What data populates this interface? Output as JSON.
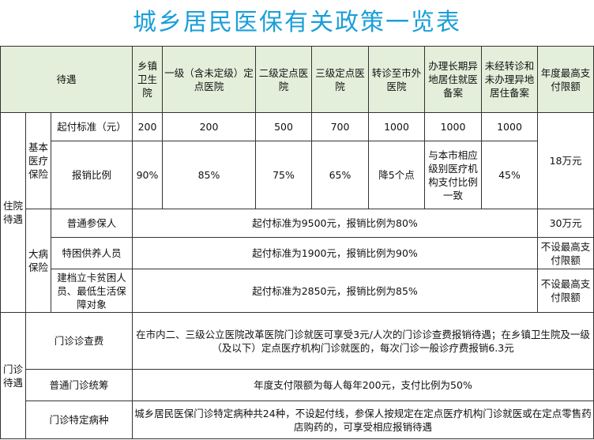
{
  "title": "城乡居民医保有关政策一览表",
  "header": {
    "benefit": "待遇",
    "township": "乡镇卫生院",
    "level1": "一级（含未定级）定点医院",
    "level2": "二级定点医院",
    "level3": "三级定点医院",
    "referral": "转诊至市外医院",
    "long_term": "办理长期异地居住就医备案",
    "no_referral": "未经转诊和未办理异地居住备案",
    "annual_cap": "年度最高支付限额"
  },
  "inpatient": {
    "label": "住院待遇",
    "basic": {
      "label": "基本医疗保险",
      "deductible": {
        "label": "起付标准（元）",
        "values": [
          "200",
          "200",
          "500",
          "700",
          "1000",
          "1000",
          "1000"
        ]
      },
      "ratio": {
        "label": "报销比例",
        "values": [
          "90%",
          "85%",
          "75%",
          "65%",
          "降5个点",
          "与本市相应级别医疗机构支付比例一致",
          "45%"
        ]
      },
      "cap": "18万元"
    },
    "serious": {
      "label": "大病保险",
      "rows": [
        {
          "label": "普通参保人",
          "text": "起付标准为9500元，报销比例为80%",
          "cap": "30万元"
        },
        {
          "label": "特困供养人员",
          "text": "起付标准为1900元，报销比例为90%",
          "cap": "不设最高支付限额"
        },
        {
          "label": "建档立卡贫困人员、最低生活保障对象",
          "text": "起付标准为2850元，报销比例为85%",
          "cap": "不设最高支付限额"
        }
      ]
    }
  },
  "outpatient": {
    "label": "门诊待遇",
    "rows": [
      {
        "label": "门诊诊查费",
        "text": "在市内二、三级公立医院改革医院门诊就医可享受3元/人次的门诊诊查费报销待遇；在乡镇卫生院及一级（及以下）定点医疗机构门诊就医的，每次门诊一般诊疗费报销6.3元"
      },
      {
        "label": "普通门诊统筹",
        "text": "年度支付限额为每人每年200元，支付比例为50%"
      },
      {
        "label": "门诊特定病种",
        "text": "城乡居民医保门诊特定病种共24种，不设起付线，参保人按规定在定点医疗机构门诊就医或在定点零售药店购药的，可享受相应报销待遇"
      }
    ]
  }
}
